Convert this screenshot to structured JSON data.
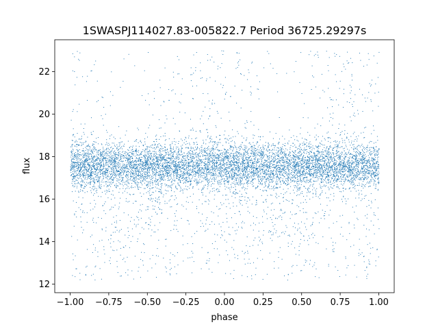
{
  "chart_data": {
    "type": "scatter",
    "title": "1SWASPJ114027.83-005822.7 Period 36725.29297s",
    "xlabel": "phase",
    "ylabel": "flux",
    "xlim": [
      -1.1,
      1.1
    ],
    "ylim": [
      11.6,
      23.5
    ],
    "x_ticks": [
      -1.0,
      -0.75,
      -0.5,
      -0.25,
      0.0,
      0.25,
      0.5,
      0.75,
      1.0
    ],
    "x_tick_labels": [
      "−1.00",
      "−0.75",
      "−0.50",
      "−0.25",
      "0.00",
      "0.25",
      "0.50",
      "0.75",
      "1.00"
    ],
    "y_ticks": [
      12,
      14,
      16,
      18,
      20,
      22
    ],
    "y_tick_labels": [
      "12",
      "14",
      "16",
      "18",
      "20",
      "22"
    ],
    "grid": false,
    "legend": "none",
    "marker_color": "#1f77b4",
    "series": [
      {
        "name": "",
        "description_of_distribution": "",
        "x_range": [
          -1.0,
          1.0
        ],
        "y_core_range": [
          16.5,
          18.8
        ],
        "y_core_center": 17.6,
        "dips": [
          {
            "phase": -0.62,
            "min_flux": 13.6
          },
          {
            "phase": 0.38,
            "min_flux": 13.6
          }
        ],
        "y_outlier_range": [
          12.2,
          23.0
        ]
      }
    ]
  }
}
